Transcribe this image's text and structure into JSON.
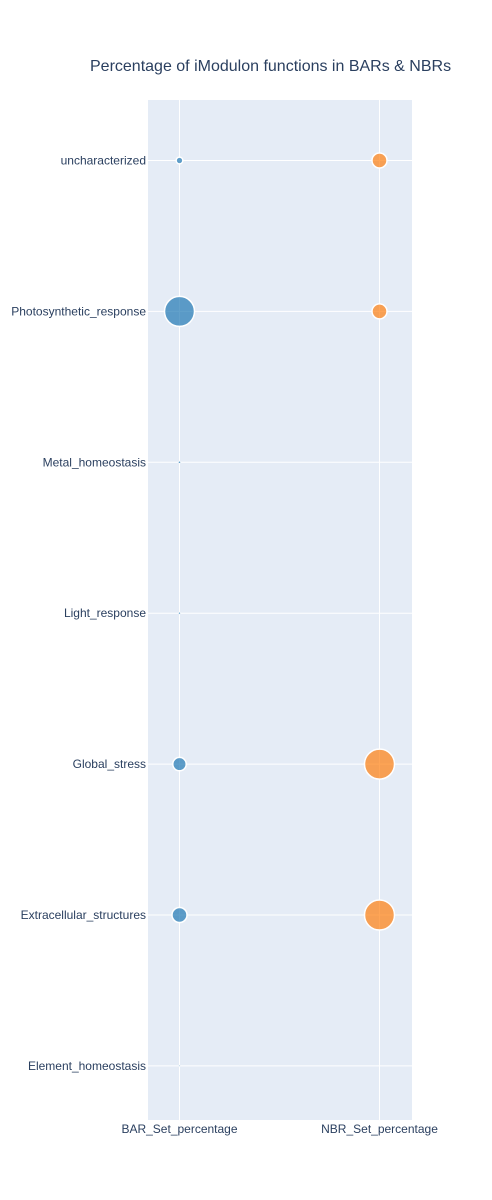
{
  "chart_data": {
    "type": "scatter",
    "title": "Percentage of iModulon functions in BARs & NBRs",
    "xlabel": "",
    "ylabel": "",
    "x_categories": [
      "BAR_Set_percentage",
      "NBR_Set_percentage"
    ],
    "y_categories": [
      "uncharacterized",
      "Photosynthetic_response",
      "Metal_homeostasis",
      "Light_response",
      "Global_stress",
      "Extracellular_structures",
      "Element_homeostasis"
    ],
    "series": [
      {
        "x": "BAR_Set_percentage",
        "color": "#1f77b4",
        "values": [
          2,
          40,
          0.2,
          0.15,
          8,
          10,
          0.05
        ]
      },
      {
        "x": "NBR_Set_percentage",
        "color": "#ff7f0e",
        "values": [
          10,
          10,
          0,
          0,
          40,
          40,
          0
        ]
      }
    ],
    "grid": true,
    "legend": "none"
  }
}
